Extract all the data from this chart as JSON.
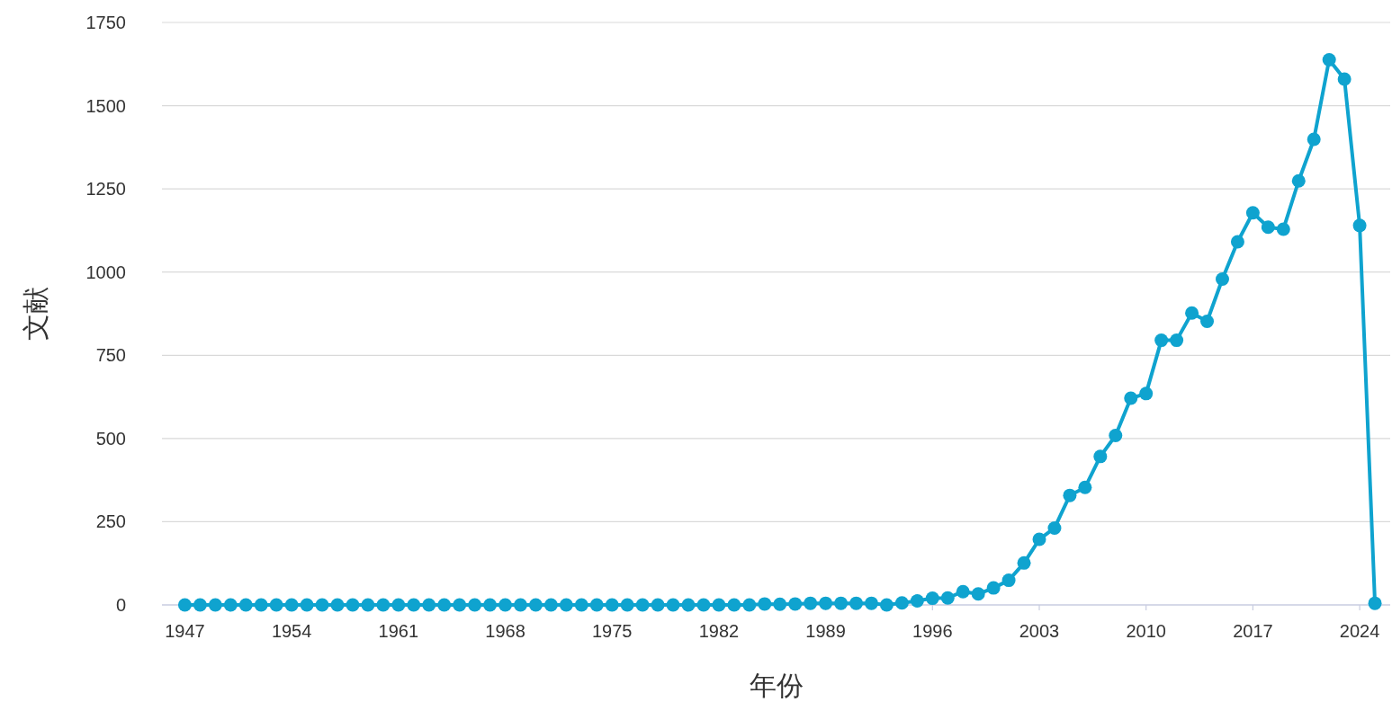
{
  "chart_data": {
    "type": "line",
    "xlabel": "年份",
    "ylabel": "文献",
    "x": [
      1947,
      1948,
      1949,
      1950,
      1951,
      1952,
      1953,
      1954,
      1955,
      1956,
      1957,
      1958,
      1959,
      1960,
      1961,
      1962,
      1963,
      1964,
      1965,
      1966,
      1967,
      1968,
      1969,
      1970,
      1971,
      1972,
      1973,
      1974,
      1975,
      1976,
      1977,
      1978,
      1979,
      1980,
      1981,
      1982,
      1983,
      1984,
      1985,
      1986,
      1987,
      1988,
      1989,
      1990,
      1991,
      1992,
      1993,
      1994,
      1995,
      1996,
      1997,
      1998,
      1999,
      2000,
      2001,
      2002,
      2003,
      2004,
      2005,
      2006,
      2007,
      2008,
      2009,
      2010,
      2011,
      2012,
      2013,
      2014,
      2015,
      2016,
      2017,
      2018,
      2019,
      2020,
      2021,
      2022,
      2023,
      2024,
      2025
    ],
    "values": [
      0,
      0,
      0,
      0,
      0,
      0,
      0,
      0,
      0,
      0,
      0,
      0,
      0,
      0,
      0,
      0,
      0,
      0,
      0,
      0,
      0,
      0,
      0,
      0,
      0,
      0,
      0,
      0,
      0,
      0,
      0,
      0,
      0,
      0,
      0,
      0,
      0,
      0,
      3,
      2,
      3,
      5,
      5,
      5,
      5,
      5,
      0,
      6,
      12,
      20,
      21,
      40,
      33,
      51,
      74,
      126,
      197,
      231,
      329,
      353,
      446,
      509,
      621,
      635,
      795,
      795,
      877,
      852,
      979,
      1091,
      1178,
      1135,
      1129,
      1274,
      1399,
      1638,
      1580,
      1140,
      5
    ],
    "color": "#0fa3cf",
    "marker": "circle",
    "line_style": "solid",
    "grid": "y",
    "xlim": [
      1945.5,
      2026
    ],
    "ylim": [
      0,
      1750
    ],
    "xticks": [
      1947,
      1954,
      1961,
      1968,
      1975,
      1982,
      1989,
      1996,
      2003,
      2010,
      2017,
      2024
    ],
    "yticks": [
      0,
      250,
      500,
      750,
      1000,
      1250,
      1500,
      1750
    ]
  }
}
